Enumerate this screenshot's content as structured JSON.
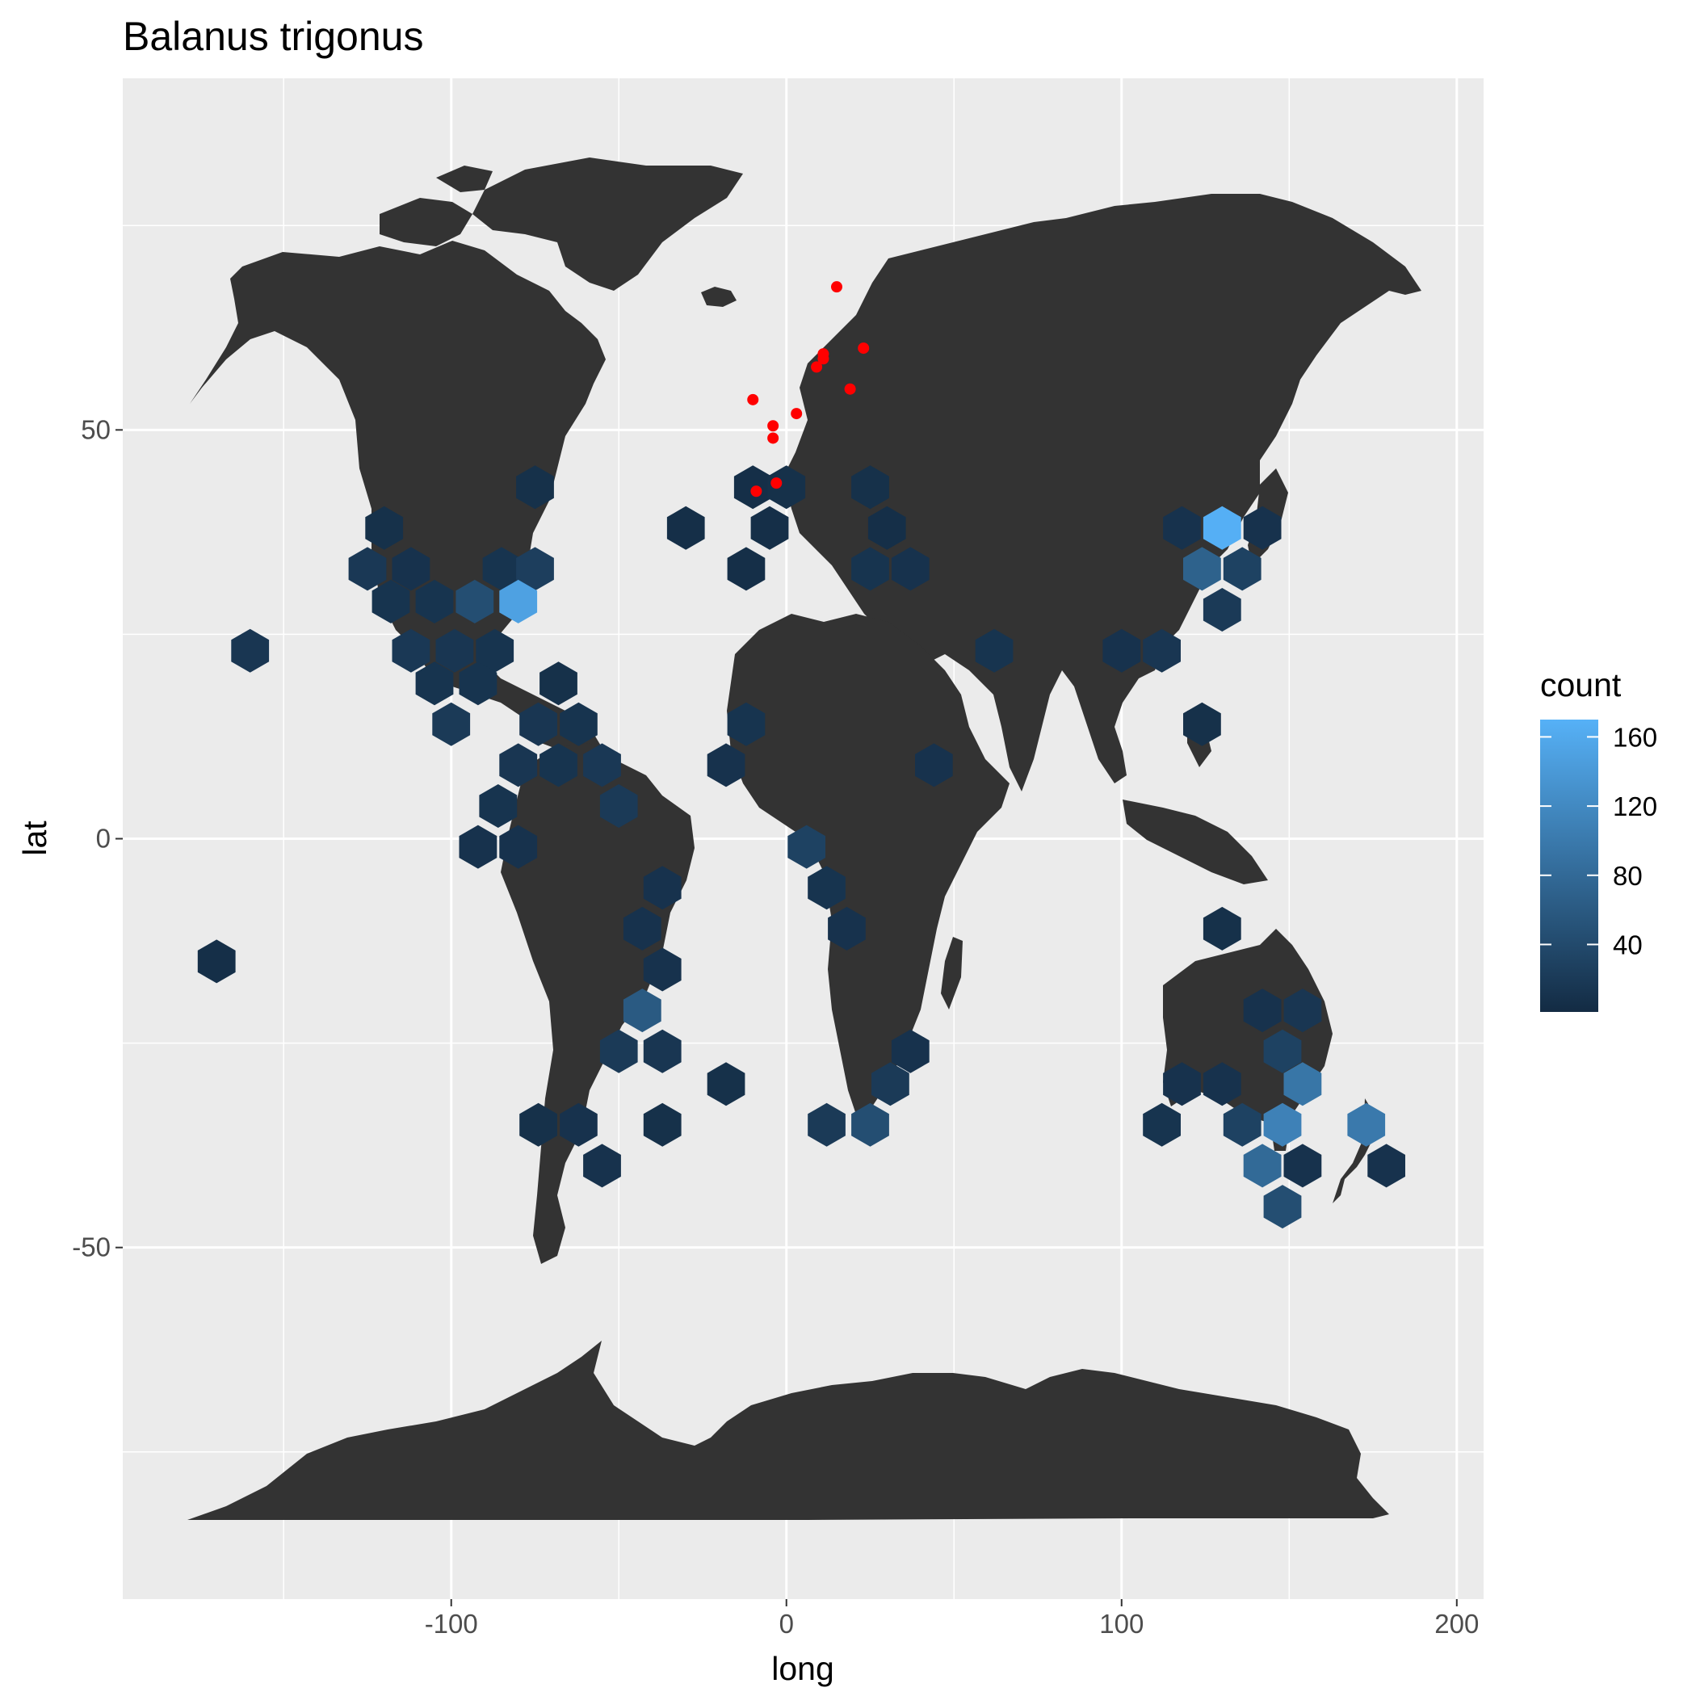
{
  "chart_data": {
    "type": "map-hexbin",
    "title": "Balanus trigonus",
    "xlabel": "long",
    "ylabel": "lat",
    "xlim": [
      -198,
      208
    ],
    "ylim": [
      -93,
      93
    ],
    "x_ticks": [
      -100,
      0,
      100,
      200
    ],
    "y_ticks": [
      -50,
      0,
      50
    ],
    "x_minor_ticks": [
      -150,
      -50,
      50,
      150
    ],
    "y_minor_ticks": [
      -75,
      -25,
      25,
      75
    ],
    "grid": true,
    "panel_background": "#ebebeb",
    "land_color": "#333333",
    "point_color": "#ff0000",
    "legend": {
      "title": "count",
      "position": "right",
      "labels": [
        "160",
        "120",
        "80",
        "40"
      ],
      "values": [
        160,
        120,
        80,
        40
      ],
      "range": [
        1,
        170
      ],
      "low_color": "#132b43",
      "high_color": "#56b1f7"
    },
    "hexbins": [
      {
        "x": -75,
        "y": 43,
        "count": 8
      },
      {
        "x": -10,
        "y": 43,
        "count": 6
      },
      {
        "x": 0,
        "y": 43,
        "count": 8
      },
      {
        "x": 25,
        "y": 43,
        "count": 8
      },
      {
        "x": -120,
        "y": 38,
        "count": 8
      },
      {
        "x": -30,
        "y": 38,
        "count": 6
      },
      {
        "x": -5,
        "y": 38,
        "count": 6
      },
      {
        "x": 30,
        "y": 38,
        "count": 6
      },
      {
        "x": 118,
        "y": 38,
        "count": 10
      },
      {
        "x": 130,
        "y": 38,
        "count": 168
      },
      {
        "x": 142,
        "y": 38,
        "count": 10
      },
      {
        "x": -125,
        "y": 33,
        "count": 18
      },
      {
        "x": -112,
        "y": 33,
        "count": 10
      },
      {
        "x": -85,
        "y": 33,
        "count": 12
      },
      {
        "x": -75,
        "y": 33,
        "count": 25
      },
      {
        "x": -12,
        "y": 33,
        "count": 6
      },
      {
        "x": 25,
        "y": 33,
        "count": 12
      },
      {
        "x": 37,
        "y": 33,
        "count": 10
      },
      {
        "x": 124,
        "y": 33,
        "count": 70
      },
      {
        "x": 136,
        "y": 33,
        "count": 30
      },
      {
        "x": -118,
        "y": 29,
        "count": 12
      },
      {
        "x": -105,
        "y": 29,
        "count": 12
      },
      {
        "x": -93,
        "y": 29,
        "count": 45
      },
      {
        "x": -80,
        "y": 29,
        "count": 150
      },
      {
        "x": 130,
        "y": 28,
        "count": 20
      },
      {
        "x": -160,
        "y": 23,
        "count": 15
      },
      {
        "x": -112,
        "y": 23,
        "count": 18
      },
      {
        "x": -99,
        "y": 23,
        "count": 15
      },
      {
        "x": -87,
        "y": 23,
        "count": 12
      },
      {
        "x": 62,
        "y": 23,
        "count": 12
      },
      {
        "x": 100,
        "y": 23,
        "count": 10
      },
      {
        "x": 112,
        "y": 23,
        "count": 15
      },
      {
        "x": -105,
        "y": 19,
        "count": 12
      },
      {
        "x": -92,
        "y": 19,
        "count": 12
      },
      {
        "x": -68,
        "y": 19,
        "count": 8
      },
      {
        "x": -100,
        "y": 14,
        "count": 20
      },
      {
        "x": -74,
        "y": 14,
        "count": 15
      },
      {
        "x": -62,
        "y": 14,
        "count": 12
      },
      {
        "x": -12,
        "y": 14,
        "count": 12
      },
      {
        "x": 124,
        "y": 14,
        "count": 8
      },
      {
        "x": -80,
        "y": 9,
        "count": 15
      },
      {
        "x": -68,
        "y": 9,
        "count": 12
      },
      {
        "x": -55,
        "y": 9,
        "count": 18
      },
      {
        "x": -18,
        "y": 9,
        "count": 10
      },
      {
        "x": 44,
        "y": 9,
        "count": 10
      },
      {
        "x": -86,
        "y": 4,
        "count": 12
      },
      {
        "x": -50,
        "y": 4,
        "count": 20
      },
      {
        "x": -92,
        "y": -1,
        "count": 10
      },
      {
        "x": -80,
        "y": -1,
        "count": 10
      },
      {
        "x": 6,
        "y": -1,
        "count": 30
      },
      {
        "x": -37,
        "y": -6,
        "count": 10
      },
      {
        "x": 12,
        "y": -6,
        "count": 12
      },
      {
        "x": -43,
        "y": -11,
        "count": 10
      },
      {
        "x": 18,
        "y": -11,
        "count": 10
      },
      {
        "x": 130,
        "y": -11,
        "count": 8
      },
      {
        "x": -170,
        "y": -15,
        "count": 6
      },
      {
        "x": -37,
        "y": -16,
        "count": 10
      },
      {
        "x": -43,
        "y": -21,
        "count": 60
      },
      {
        "x": 142,
        "y": -21,
        "count": 10
      },
      {
        "x": 154,
        "y": -21,
        "count": 15
      },
      {
        "x": -50,
        "y": -26,
        "count": 20
      },
      {
        "x": -37,
        "y": -26,
        "count": 15
      },
      {
        "x": 37,
        "y": -26,
        "count": 10
      },
      {
        "x": 148,
        "y": -26,
        "count": 30
      },
      {
        "x": -18,
        "y": -30,
        "count": 8
      },
      {
        "x": 31,
        "y": -30,
        "count": 20
      },
      {
        "x": 118,
        "y": -30,
        "count": 10
      },
      {
        "x": 130,
        "y": -30,
        "count": 10
      },
      {
        "x": 154,
        "y": -30,
        "count": 95
      },
      {
        "x": -74,
        "y": -35,
        "count": 8
      },
      {
        "x": -62,
        "y": -35,
        "count": 10
      },
      {
        "x": -37,
        "y": -35,
        "count": 8
      },
      {
        "x": 12,
        "y": -35,
        "count": 20
      },
      {
        "x": 25,
        "y": -35,
        "count": 45
      },
      {
        "x": 112,
        "y": -35,
        "count": 12
      },
      {
        "x": 136,
        "y": -35,
        "count": 30
      },
      {
        "x": 148,
        "y": -35,
        "count": 110
      },
      {
        "x": 173,
        "y": -35,
        "count": 100
      },
      {
        "x": -55,
        "y": -40,
        "count": 10
      },
      {
        "x": 142,
        "y": -40,
        "count": 80
      },
      {
        "x": 154,
        "y": -40,
        "count": 10
      },
      {
        "x": 179,
        "y": -40,
        "count": 10
      },
      {
        "x": 148,
        "y": -45,
        "count": 45
      }
    ],
    "points": [
      {
        "x": 15,
        "y": 67.5
      },
      {
        "x": 23,
        "y": 60
      },
      {
        "x": 11,
        "y": 59.3
      },
      {
        "x": 11,
        "y": 58.7
      },
      {
        "x": 9,
        "y": 57.7
      },
      {
        "x": 19,
        "y": 55
      },
      {
        "x": -10,
        "y": 53.7
      },
      {
        "x": 3,
        "y": 52
      },
      {
        "x": -4,
        "y": 50.5
      },
      {
        "x": -4,
        "y": 49
      },
      {
        "x": -3,
        "y": 43.5
      },
      {
        "x": -9,
        "y": 42.5
      }
    ]
  }
}
